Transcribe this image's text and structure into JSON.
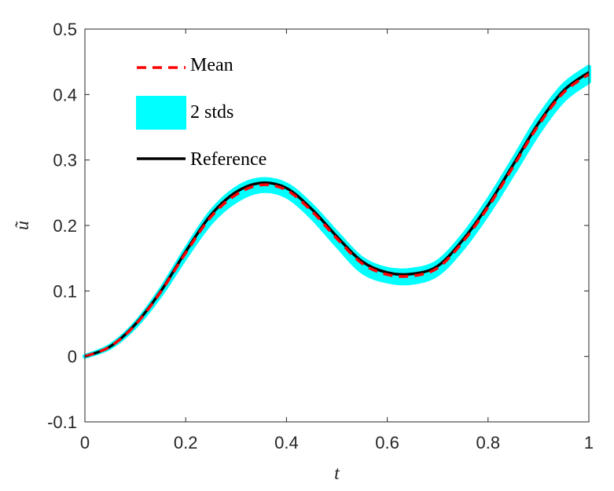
{
  "chart_data": {
    "type": "line",
    "xlabel": "t",
    "ylabel": "ũ",
    "xlim": [
      0,
      1
    ],
    "ylim": [
      -0.1,
      0.5
    ],
    "xticks": [
      0,
      0.2,
      0.4,
      0.6,
      0.8,
      1
    ],
    "xtick_labels": [
      "0",
      "0.2",
      "0.4",
      "0.6",
      "0.8",
      "1"
    ],
    "yticks": [
      -0.1,
      0,
      0.1,
      0.2,
      0.3,
      0.4,
      0.5
    ],
    "ytick_labels": [
      "-0.1",
      "0",
      "0.1",
      "0.2",
      "0.3",
      "0.4",
      "0.5"
    ],
    "grid": false,
    "box": true,
    "legend_position": "top-left",
    "x": [
      0,
      0.05,
      0.1,
      0.15,
      0.2,
      0.25,
      0.3,
      0.35,
      0.4,
      0.45,
      0.5,
      0.55,
      0.6,
      0.65,
      0.7,
      0.75,
      0.8,
      0.85,
      0.9,
      0.95,
      1.0
    ],
    "series": [
      {
        "name": "Mean",
        "style": "dashed",
        "color": "#ff0000",
        "values": [
          0,
          0.015,
          0.048,
          0.098,
          0.158,
          0.213,
          0.247,
          0.262,
          0.254,
          0.222,
          0.18,
          0.142,
          0.125,
          0.123,
          0.135,
          0.175,
          0.228,
          0.29,
          0.353,
          0.403,
          0.431
        ]
      },
      {
        "name": "2  stds",
        "style": "band",
        "color": "#00ffff",
        "lower": [
          0,
          0.014,
          0.046,
          0.094,
          0.152,
          0.205,
          0.238,
          0.253,
          0.245,
          0.213,
          0.17,
          0.13,
          0.115,
          0.113,
          0.126,
          0.166,
          0.219,
          0.28,
          0.342,
          0.392,
          0.42
        ],
        "upper": [
          0,
          0.016,
          0.05,
          0.101,
          0.163,
          0.22,
          0.256,
          0.27,
          0.262,
          0.23,
          0.188,
          0.149,
          0.133,
          0.132,
          0.144,
          0.184,
          0.238,
          0.3,
          0.364,
          0.414,
          0.442
        ]
      },
      {
        "name": "Reference",
        "style": "solid",
        "color": "#000000",
        "values": [
          0,
          0.015,
          0.049,
          0.099,
          0.16,
          0.216,
          0.251,
          0.265,
          0.257,
          0.225,
          0.183,
          0.145,
          0.128,
          0.126,
          0.138,
          0.178,
          0.231,
          0.293,
          0.356,
          0.406,
          0.434
        ]
      }
    ]
  }
}
